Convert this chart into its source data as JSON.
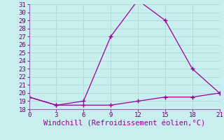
{
  "x": [
    0,
    3,
    6,
    9,
    12,
    15,
    18,
    21
  ],
  "y_upper": [
    19.5,
    18.5,
    19.0,
    27.0,
    31.5,
    29.0,
    23.0,
    20.0
  ],
  "y_lower": [
    19.5,
    18.5,
    18.5,
    18.5,
    19.0,
    19.5,
    19.5,
    20.0
  ],
  "line_color": "#990099",
  "background_color": "#c8eef0",
  "grid_color": "#b0d8da",
  "xlabel": "Windchill (Refroidissement éolien,°C)",
  "xlabel_color": "#990099",
  "xlim": [
    0,
    21
  ],
  "ylim": [
    18,
    31
  ],
  "xticks": [
    0,
    3,
    6,
    9,
    12,
    15,
    18,
    21
  ],
  "yticks": [
    18,
    19,
    20,
    21,
    22,
    23,
    24,
    25,
    26,
    27,
    28,
    29,
    30,
    31
  ],
  "tick_color": "#660066",
  "tick_fontsize": 6.5,
  "xlabel_fontsize": 7.5,
  "marker": "+",
  "markersize": 4,
  "linewidth": 0.9,
  "spine_color": "#9966aa"
}
